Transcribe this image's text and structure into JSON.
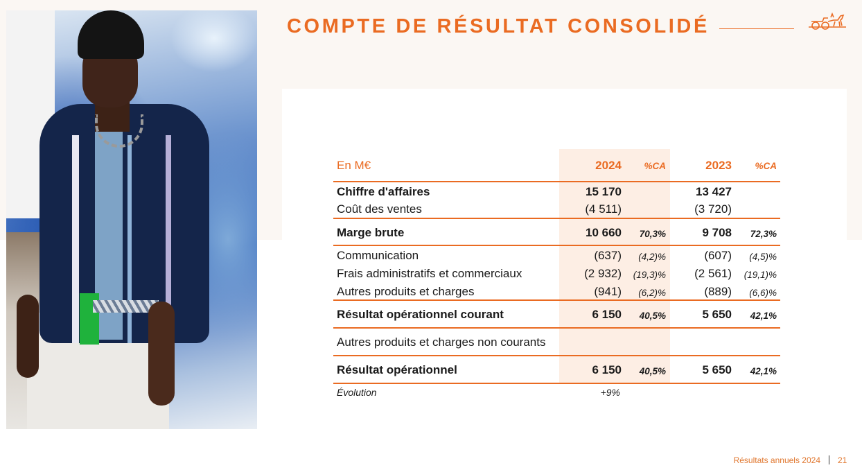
{
  "slide": {
    "title": "COMPTE DE RÉSULTAT CONSOLIDÉ",
    "footer_text": "Résultats annuels 2024",
    "page_number": "21",
    "accent_color": "#ea6b22"
  },
  "table": {
    "unit_label": "En M€",
    "col_2024": "2024",
    "col_2024_pct": "%CA",
    "col_2023": "2023",
    "col_2023_pct": "%CA",
    "rows": [
      {
        "label": "Chiffre d'affaires",
        "v2024": "15 170",
        "p2024": "",
        "v2023": "13 427",
        "p2023": ""
      },
      {
        "label": "Coût des ventes",
        "v2024": "(4 511)",
        "p2024": "",
        "v2023": "(3 720)",
        "p2023": ""
      },
      {
        "label": "Marge brute",
        "v2024": "10 660",
        "p2024": "70,3%",
        "v2023": "9 708",
        "p2023": "72,3%"
      },
      {
        "label": "Communication",
        "v2024": "(637)",
        "p2024": "(4,2)%",
        "v2023": "(607)",
        "p2023": "(4,5)%"
      },
      {
        "label": "Frais administratifs et commerciaux",
        "v2024": "(2 932)",
        "p2024": "(19,3)%",
        "v2023": "(2 561)",
        "p2023": "(19,1)%"
      },
      {
        "label": "Autres produits et charges",
        "v2024": "(941)",
        "p2024": "(6,2)%",
        "v2023": "(889)",
        "p2023": "(6,6)%"
      },
      {
        "label": "Résultat opérationnel courant",
        "v2024": "6 150",
        "p2024": "40,5%",
        "v2023": "5 650",
        "p2023": "42,1%"
      },
      {
        "label": "Autres produits et charges non courants",
        "v2024": "",
        "p2024": "",
        "v2023": "",
        "p2023": ""
      },
      {
        "label": "Résultat opérationnel",
        "v2024": "6 150",
        "p2024": "40,5%",
        "v2023": "5 650",
        "p2023": "42,1%"
      }
    ],
    "evolution_label": "Évolution",
    "evolution_value": "+9%"
  }
}
